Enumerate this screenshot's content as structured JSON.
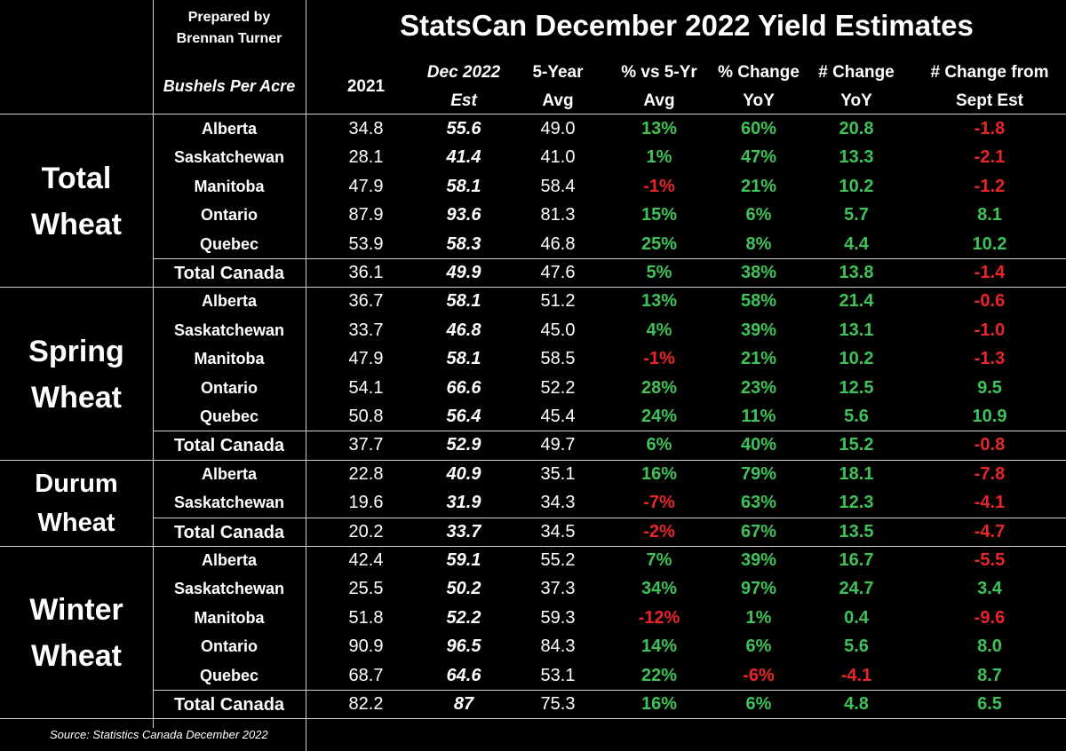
{
  "prepared_by": [
    "Prepared by",
    "Brennan Turner"
  ],
  "units_label": "Bushels Per Acre",
  "source": "Source: Statistics Canada December 2022",
  "colors": {
    "positive": "#3fc25a",
    "negative": "#e8262a",
    "background": "#000000",
    "text": "#ffffff"
  },
  "chart_data": {
    "type": "table",
    "title": "StatsCan December 2022 Yield Estimates",
    "columns": [
      {
        "key": "y2021",
        "lines": [
          "2021"
        ]
      },
      {
        "key": "dec2022",
        "lines": [
          "Dec 2022",
          "Est"
        ]
      },
      {
        "key": "avg5",
        "lines": [
          "5-Year",
          "Avg"
        ]
      },
      {
        "key": "pct5",
        "lines": [
          "% vs 5-Yr",
          "Avg"
        ]
      },
      {
        "key": "pctyoy",
        "lines": [
          "% Change",
          "YoY"
        ]
      },
      {
        "key": "numyoy",
        "lines": [
          "# Change",
          "YoY"
        ]
      },
      {
        "key": "sept",
        "lines": [
          "# Change from",
          "Sept Est"
        ]
      }
    ],
    "groups": [
      {
        "name": [
          "Total",
          "Wheat"
        ],
        "rows": [
          {
            "region": "Alberta",
            "values": [
              "34.8",
              "55.6",
              "49.0",
              "13%",
              "60%",
              "20.8",
              "-1.8"
            ]
          },
          {
            "region": "Saskatchewan",
            "values": [
              "28.1",
              "41.4",
              "41.0",
              "1%",
              "47%",
              "13.3",
              "-2.1"
            ]
          },
          {
            "region": "Manitoba",
            "values": [
              "47.9",
              "58.1",
              "58.4",
              "-1%",
              "21%",
              "10.2",
              "-1.2"
            ]
          },
          {
            "region": "Ontario",
            "values": [
              "87.9",
              "93.6",
              "81.3",
              "15%",
              "6%",
              "5.7",
              "8.1"
            ]
          },
          {
            "region": "Quebec",
            "values": [
              "53.9",
              "58.3",
              "46.8",
              "25%",
              "8%",
              "4.4",
              "10.2"
            ]
          },
          {
            "region": "Total Canada",
            "values": [
              "36.1",
              "49.9",
              "47.6",
              "5%",
              "38%",
              "13.8",
              "-1.4"
            ]
          }
        ]
      },
      {
        "name": [
          "Spring",
          "Wheat"
        ],
        "rows": [
          {
            "region": "Alberta",
            "values": [
              "36.7",
              "58.1",
              "51.2",
              "13%",
              "58%",
              "21.4",
              "-0.6"
            ]
          },
          {
            "region": "Saskatchewan",
            "values": [
              "33.7",
              "46.8",
              "45.0",
              "4%",
              "39%",
              "13.1",
              "-1.0"
            ]
          },
          {
            "region": "Manitoba",
            "values": [
              "47.9",
              "58.1",
              "58.5",
              "-1%",
              "21%",
              "10.2",
              "-1.3"
            ]
          },
          {
            "region": "Ontario",
            "values": [
              "54.1",
              "66.6",
              "52.2",
              "28%",
              "23%",
              "12.5",
              "9.5"
            ]
          },
          {
            "region": "Quebec",
            "values": [
              "50.8",
              "56.4",
              "45.4",
              "24%",
              "11%",
              "5.6",
              "10.9"
            ]
          },
          {
            "region": "Total Canada",
            "values": [
              "37.7",
              "52.9",
              "49.7",
              "6%",
              "40%",
              "15.2",
              "-0.8"
            ]
          }
        ]
      },
      {
        "name": [
          "Durum",
          "Wheat"
        ],
        "rows": [
          {
            "region": "Alberta",
            "values": [
              "22.8",
              "40.9",
              "35.1",
              "16%",
              "79%",
              "18.1",
              "-7.8"
            ]
          },
          {
            "region": "Saskatchewan",
            "values": [
              "19.6",
              "31.9",
              "34.3",
              "-7%",
              "63%",
              "12.3",
              "-4.1"
            ]
          },
          {
            "region": "Total Canada",
            "values": [
              "20.2",
              "33.7",
              "34.5",
              "-2%",
              "67%",
              "13.5",
              "-4.7"
            ]
          }
        ]
      },
      {
        "name": [
          "Winter",
          "Wheat"
        ],
        "rows": [
          {
            "region": "Alberta",
            "values": [
              "42.4",
              "59.1",
              "55.2",
              "7%",
              "39%",
              "16.7",
              "-5.5"
            ]
          },
          {
            "region": "Saskatchewan",
            "values": [
              "25.5",
              "50.2",
              "37.3",
              "34%",
              "97%",
              "24.7",
              "3.4"
            ]
          },
          {
            "region": "Manitoba",
            "values": [
              "51.8",
              "52.2",
              "59.3",
              "-12%",
              "1%",
              "0.4",
              "-9.6"
            ]
          },
          {
            "region": "Ontario",
            "values": [
              "90.9",
              "96.5",
              "84.3",
              "14%",
              "6%",
              "5.6",
              "8.0"
            ]
          },
          {
            "region": "Quebec",
            "values": [
              "68.7",
              "64.6",
              "53.1",
              "22%",
              "-6%",
              "-4.1",
              "8.7"
            ]
          },
          {
            "region": "Total Canada",
            "values": [
              "82.2",
              "87",
              "75.3",
              "16%",
              "6%",
              "4.8",
              "6.5"
            ]
          }
        ]
      }
    ]
  }
}
